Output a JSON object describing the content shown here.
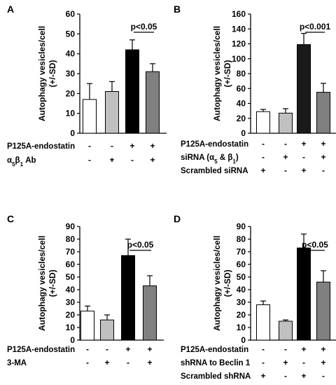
{
  "chart_data": [
    {
      "type": "bar",
      "panel": "A",
      "ylabel": [
        "Autophagy vesicles/cell",
        "(+/-SD)"
      ],
      "ylim": [
        0,
        60
      ],
      "yticks": [
        0,
        10,
        20,
        30,
        40,
        50,
        60
      ],
      "values": [
        17,
        21,
        42,
        31
      ],
      "errors": [
        8,
        5,
        5,
        4
      ],
      "colors": [
        "#ffffff",
        "#c0c0c0",
        "#000000",
        "#808080"
      ],
      "pvalue": "p<0.05",
      "rows": [
        {
          "label": "P125A-endostatin",
          "signs": [
            "-",
            "-",
            "+",
            "+"
          ]
        },
        {
          "label": "α5β1 Ab",
          "signs": [
            "-",
            "+",
            "-",
            "+"
          ]
        }
      ]
    },
    {
      "type": "bar",
      "panel": "B",
      "ylabel": [
        "Autophagy vesicles/cell",
        "(+/-SD)"
      ],
      "ylim": [
        0,
        160
      ],
      "yticks": [
        0,
        20,
        40,
        60,
        80,
        100,
        120,
        140,
        160
      ],
      "values": [
        29,
        27,
        119,
        55
      ],
      "errors": [
        3,
        6,
        15,
        12
      ],
      "colors": [
        "#ffffff",
        "#c0c0c0",
        "#1a1a1a",
        "#808080"
      ],
      "pvalue": "p<0.001",
      "rows": [
        {
          "label": "P125A-endostatin",
          "signs": [
            "-",
            "-",
            "+",
            "+"
          ]
        },
        {
          "label": "siRNA (α5 & β1)",
          "signs": [
            "-",
            "+",
            "-",
            "+"
          ]
        },
        {
          "label": "Scrambled siRNA",
          "signs": [
            "+",
            "-",
            "+",
            "-"
          ]
        }
      ]
    },
    {
      "type": "bar",
      "panel": "C",
      "ylabel": [
        "Autophagy vesicles/cell",
        "(+/-SD)"
      ],
      "ylim": [
        0,
        90
      ],
      "yticks": [
        0,
        10,
        20,
        30,
        40,
        50,
        60,
        70,
        80,
        90
      ],
      "values": [
        23,
        16,
        67,
        43
      ],
      "errors": [
        4,
        4,
        13,
        8
      ],
      "colors": [
        "#ffffff",
        "#c0c0c0",
        "#000000",
        "#808080"
      ],
      "pvalue": "p<0.05",
      "rows": [
        {
          "label": "P125A-endostatin",
          "signs": [
            "-",
            "-",
            "+",
            "+"
          ]
        },
        {
          "label": "3-MA",
          "signs": [
            "-",
            "+",
            "-",
            "+"
          ]
        }
      ]
    },
    {
      "type": "bar",
      "panel": "D",
      "ylabel": [
        "Autophagy vesicles/cell",
        "(+/-SD)"
      ],
      "ylim": [
        0,
        90
      ],
      "yticks": [
        0,
        10,
        20,
        30,
        40,
        50,
        60,
        70,
        80,
        90
      ],
      "values": [
        28,
        15,
        73,
        46
      ],
      "errors": [
        3,
        1,
        11,
        9
      ],
      "colors": [
        "#ffffff",
        "#c0c0c0",
        "#000000",
        "#808080"
      ],
      "pvalue": "p<0.05",
      "rows": [
        {
          "label": "P125A-endostatin",
          "signs": [
            "-",
            "-",
            "+",
            "+"
          ]
        },
        {
          "label": "shRNA to Beclin 1",
          "signs": [
            "-",
            "+",
            "-",
            "+"
          ]
        },
        {
          "label": "Scrambled shRNA",
          "signs": [
            "+",
            "-",
            "+",
            "-"
          ]
        }
      ]
    }
  ]
}
